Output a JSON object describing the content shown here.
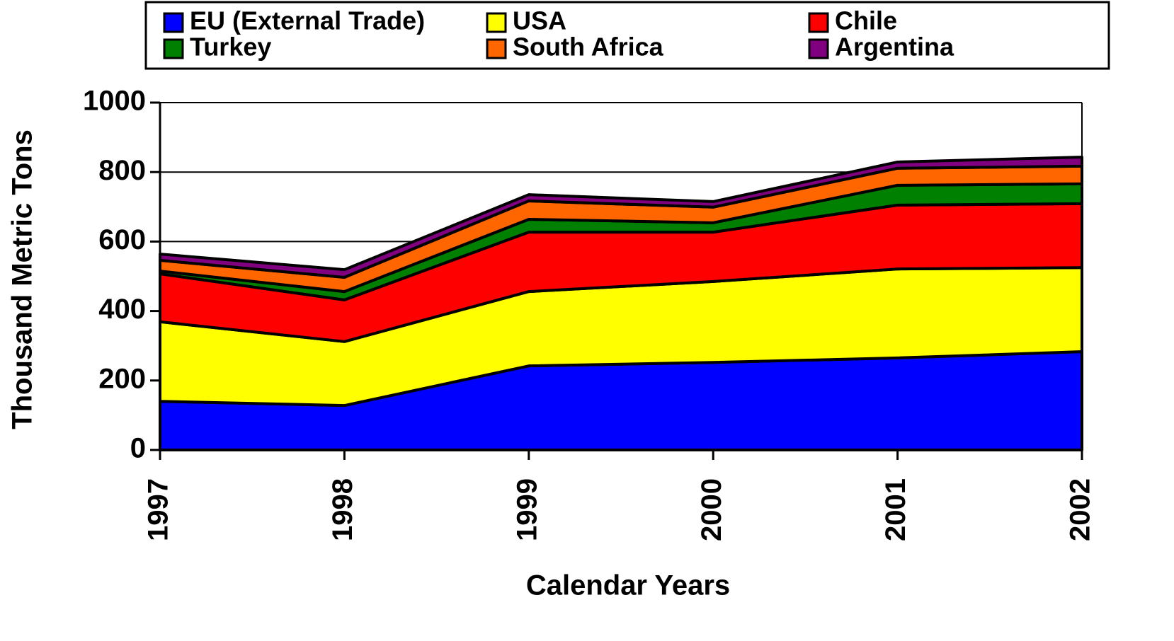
{
  "chart_data": {
    "type": "area",
    "stacked": true,
    "categories": [
      "1997",
      "1998",
      "1999",
      "2000",
      "2001",
      "2002"
    ],
    "series": [
      {
        "name": "EU (External Trade)",
        "color": "#0000ff",
        "values": [
          140,
          128,
          242,
          252,
          265,
          283
        ]
      },
      {
        "name": "USA",
        "color": "#ffff00",
        "values": [
          229,
          184,
          214,
          233,
          256,
          242
        ]
      },
      {
        "name": "Chile",
        "color": "#ff0000",
        "values": [
          138,
          120,
          171,
          142,
          184,
          184
        ]
      },
      {
        "name": "Turkey",
        "color": "#008000",
        "values": [
          8,
          24,
          37,
          27,
          57,
          57
        ]
      },
      {
        "name": "South Africa",
        "color": "#ff6600",
        "values": [
          31,
          41,
          53,
          45,
          49,
          51
        ]
      },
      {
        "name": "Argentina",
        "color": "#800080",
        "values": [
          18,
          22,
          18,
          16,
          18,
          26
        ]
      }
    ],
    "ylim": [
      0,
      1000
    ],
    "yticks": [
      0,
      200,
      400,
      600,
      800,
      1000
    ],
    "grid": true,
    "y_label": "Thousand Metric Tons",
    "x_label": "Calendar Years",
    "legend": "top"
  }
}
